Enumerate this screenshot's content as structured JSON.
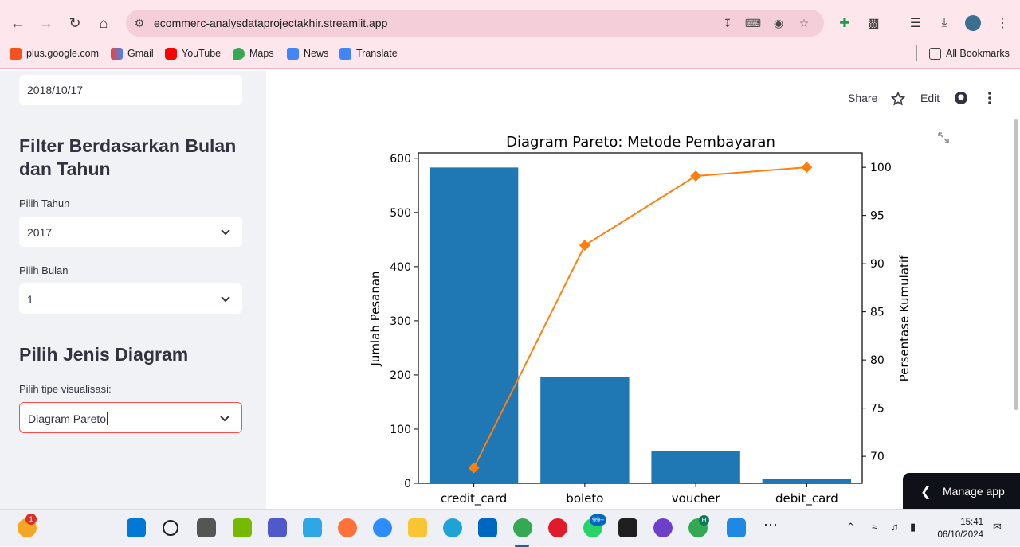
{
  "browser": {
    "url": "ecommerc-analysdataprojectakhir.streamlit.app",
    "bookmarks": [
      "plus.google.com",
      "Gmail",
      "YouTube",
      "Maps",
      "News",
      "Translate"
    ],
    "all_bookmarks": "All Bookmarks"
  },
  "sidebar": {
    "date_value": "2018/10/17",
    "filter_heading": "Filter Berdasarkan Bulan dan Tahun",
    "year_label": "Pilih Tahun",
    "year_value": "2017",
    "month_label": "Pilih Bulan",
    "month_value": "1",
    "diagram_heading": "Pilih Jenis Diagram",
    "viz_label": "Pilih tipe visualisasi:",
    "viz_value": "Diagram Pareto"
  },
  "header": {
    "share": "Share",
    "edit": "Edit"
  },
  "manage_app": "Manage app",
  "taskbar": {
    "time": "15:41",
    "date": "06/10/2024",
    "weather_badge": "1",
    "whatsapp_badge": "99+",
    "chrome_badge": "H"
  },
  "chart_data": {
    "type": "bar",
    "title": "Diagram Pareto: Metode Pembayaran",
    "xlabel": "",
    "ylabel": "Jumlah Pesanan",
    "y2label": "Persentase Kumulatif",
    "categories": [
      "credit_card",
      "boleto",
      "voucher",
      "debit_card"
    ],
    "values": [
      583,
      196,
      60,
      8
    ],
    "ylim": [
      0,
      610
    ],
    "yticks": [
      0,
      100,
      200,
      300,
      400,
      500,
      600
    ],
    "cumulative_percent": [
      68.8,
      91.9,
      99.1,
      100
    ],
    "y2lim": [
      67.2,
      101.5
    ],
    "y2ticks": [
      70,
      75,
      80,
      85,
      90,
      95,
      100
    ],
    "bar_color": "#1f77b4",
    "line_color": "#ff7f0e"
  }
}
